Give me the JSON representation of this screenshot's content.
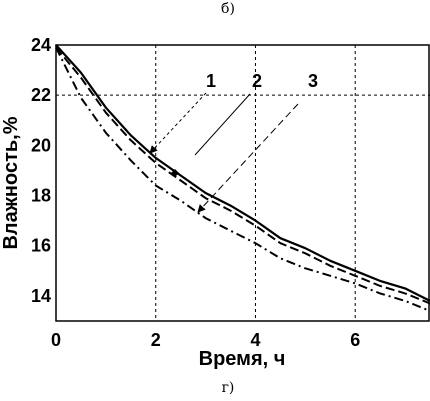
{
  "captions": {
    "top": "б)",
    "bottom": "г)"
  },
  "chart_data": {
    "type": "line",
    "title": "",
    "xlabel": "Время, ч",
    "ylabel": "Влажность,%",
    "xlim": [
      0,
      7.5
    ],
    "ylim": [
      13,
      24
    ],
    "x_ticks": [
      0,
      2,
      4,
      6
    ],
    "x_tick_labels": [
      "0",
      "2",
      "4",
      "6"
    ],
    "y_ticks": [
      14,
      16,
      18,
      20,
      22,
      24
    ],
    "y_tick_labels": [
      "14",
      "16",
      "18",
      "20",
      "22",
      "24"
    ],
    "grid": {
      "style": "dashed",
      "x": [
        2,
        4,
        6
      ],
      "y": [
        22
      ]
    },
    "series": [
      {
        "name": "1",
        "line_style": "dashed",
        "x": [
          0,
          0.5,
          1,
          1.5,
          2,
          2.5,
          3,
          3.5,
          4,
          4.5,
          5,
          5.5,
          6,
          6.5,
          7,
          7.5
        ],
        "y": [
          23.9,
          22.7,
          21.3,
          20.2,
          19.3,
          18.6,
          17.9,
          17.4,
          16.8,
          16.1,
          15.7,
          15.2,
          14.8,
          14.4,
          14.1,
          13.7
        ]
      },
      {
        "name": "2",
        "line_style": "solid",
        "x": [
          0,
          0.5,
          1,
          1.5,
          2,
          2.5,
          3,
          3.5,
          4,
          4.5,
          5,
          5.5,
          6,
          6.5,
          7,
          7.5
        ],
        "y": [
          24.0,
          22.9,
          21.5,
          20.4,
          19.5,
          18.8,
          18.1,
          17.6,
          17.0,
          16.3,
          15.9,
          15.4,
          15.0,
          14.6,
          14.3,
          13.8
        ]
      },
      {
        "name": "3",
        "line_style": "dash-dot",
        "x": [
          0,
          0.5,
          1,
          1.5,
          2,
          2.5,
          3,
          3.5,
          4,
          4.5,
          5,
          5.5,
          6,
          6.5,
          7,
          7.5
        ],
        "y": [
          23.9,
          21.9,
          20.5,
          19.4,
          18.4,
          17.8,
          17.1,
          16.6,
          16.1,
          15.5,
          15.1,
          14.8,
          14.5,
          14.1,
          13.8,
          13.4
        ]
      }
    ],
    "annotations": [
      {
        "text": "1",
        "points_to_series": "1"
      },
      {
        "text": "2",
        "points_to_series": "2"
      },
      {
        "text": "3",
        "points_to_series": "3"
      }
    ]
  }
}
